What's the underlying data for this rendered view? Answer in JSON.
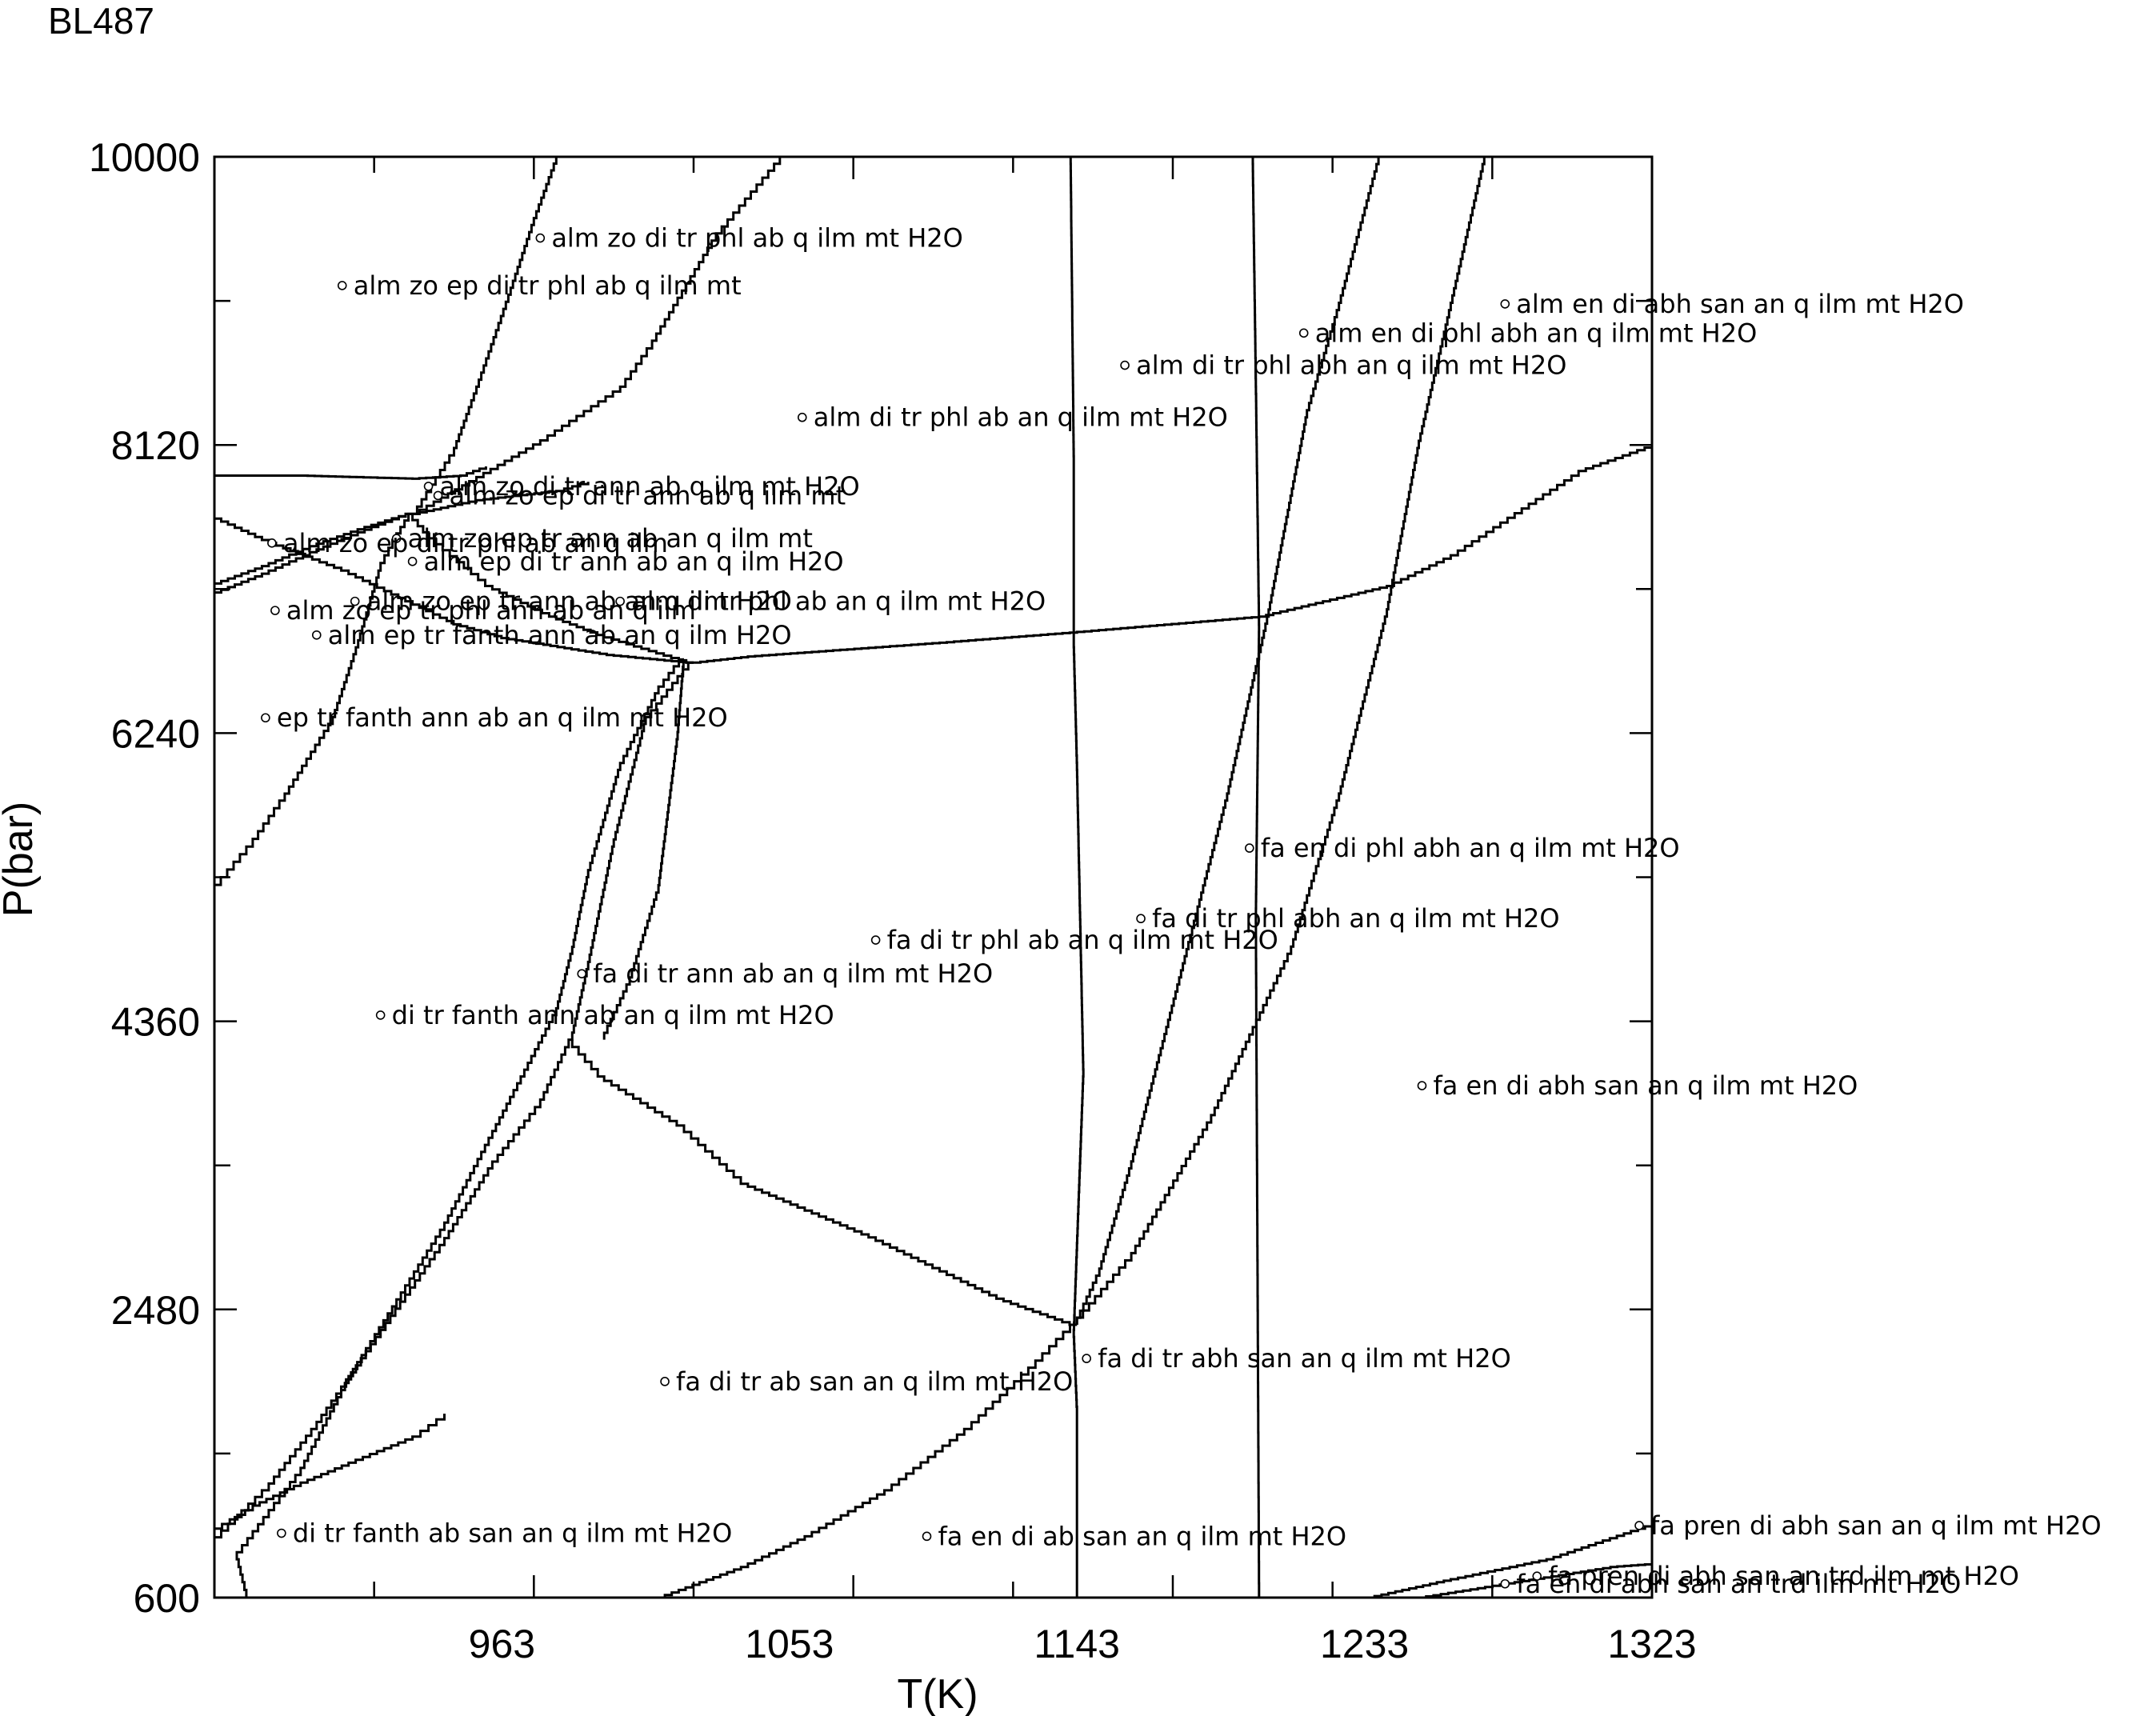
{
  "sample_label": "BL487",
  "chart_data": {
    "type": "line",
    "title": "BL487",
    "xlabel": "T(K)",
    "ylabel": "P(bar)",
    "xlim": [
      873,
      1323
    ],
    "ylim": [
      600,
      10000
    ],
    "xticks": [
      963,
      1053,
      1143,
      1233,
      1323
    ],
    "yticks": [
      600,
      2480,
      4360,
      6240,
      8120,
      10000
    ],
    "grid": false,
    "legend": "none",
    "line_color": "#000000",
    "boundaries": [
      {
        "points": [
          [
            1141,
            10000
          ],
          [
            1142,
            8000
          ],
          [
            1142,
            6800
          ],
          [
            1143,
            6000
          ],
          [
            1145,
            4000
          ],
          [
            1142,
            2300
          ],
          [
            1143,
            1800
          ],
          [
            1143,
            600
          ]
        ]
      },
      {
        "points": [
          [
            1198,
            10000
          ],
          [
            1199,
            8500
          ],
          [
            1200,
            6900
          ],
          [
            1199,
            5000
          ],
          [
            1200,
            600
          ]
        ]
      },
      {
        "points": [
          [
            1271,
            10000
          ],
          [
            1260,
            9000
          ],
          [
            1250,
            8100
          ],
          [
            1240,
            7000
          ],
          [
            1225,
            5800
          ],
          [
            1210,
            4800
          ],
          [
            1185,
            3700
          ],
          [
            1160,
            2800
          ],
          [
            1143,
            2380
          ]
        ]
      },
      {
        "points": [
          [
            1238,
            10000
          ],
          [
            1225,
            9000
          ],
          [
            1215,
            8300
          ],
          [
            1203,
            7000
          ],
          [
            1190,
            5800
          ],
          [
            1175,
            4600
          ],
          [
            1160,
            3400
          ],
          [
            1150,
            2700
          ],
          [
            1143,
            2380
          ]
        ]
      },
      {
        "points": [
          [
            1143,
            2380
          ],
          [
            1130,
            2100
          ],
          [
            1110,
            1700
          ],
          [
            1085,
            1300
          ],
          [
            1060,
            1000
          ],
          [
            1040,
            800
          ],
          [
            1014,
            600
          ]
        ]
      },
      {
        "points": [
          [
            1143,
            2380
          ],
          [
            1120,
            2550
          ],
          [
            1080,
            2950
          ],
          [
            1040,
            3300
          ],
          [
            1020,
            3680
          ],
          [
            995,
            4000
          ],
          [
            985,
            4240
          ]
        ]
      },
      {
        "points": [
          [
            1023,
            6700
          ],
          [
            1040,
            6740
          ],
          [
            1100,
            6830
          ],
          [
            1143,
            6900
          ],
          [
            1200,
            7000
          ],
          [
            1240,
            7200
          ],
          [
            1260,
            7400
          ],
          [
            1300,
            7950
          ],
          [
            1323,
            8120
          ]
        ]
      },
      {
        "points": [
          [
            1020,
            6720
          ],
          [
            1018,
            6200
          ],
          [
            1012,
            5200
          ],
          [
            1003,
            4600
          ],
          [
            995,
            4240
          ]
        ]
      },
      {
        "points": [
          [
            1023,
            6700
          ],
          [
            1008,
            6300
          ],
          [
            998,
            5500
          ],
          [
            990,
            4700
          ],
          [
            985,
            4240
          ],
          [
            975,
            3800
          ],
          [
            960,
            3400
          ],
          [
            945,
            2900
          ],
          [
            925,
            2300
          ],
          [
            905,
            1700
          ],
          [
            890,
            1300
          ],
          [
            873,
            950
          ]
        ]
      },
      {
        "points": [
          [
            1020,
            6720
          ],
          [
            1012,
            6500
          ],
          [
            1000,
            6000
          ],
          [
            990,
            5300
          ],
          [
            985,
            4800
          ],
          [
            980,
            4400
          ],
          [
            970,
            4000
          ],
          [
            960,
            3600
          ],
          [
            945,
            3000
          ],
          [
            930,
            2500
          ],
          [
            915,
            2000
          ],
          [
            900,
            1400
          ],
          [
            880,
            850
          ],
          [
            883,
            600
          ]
        ]
      },
      {
        "points": [
          [
            1023,
            6700
          ],
          [
            995,
            6880
          ],
          [
            980,
            7000
          ],
          [
            960,
            7200
          ],
          [
            940,
            7550
          ],
          [
            935,
            7670
          ]
        ]
      },
      {
        "points": [
          [
            1023,
            6700
          ],
          [
            998,
            6750
          ],
          [
            965,
            6860
          ],
          [
            950,
            6950
          ],
          [
            935,
            7100
          ],
          [
            915,
            7300
          ],
          [
            890,
            7500
          ],
          [
            873,
            7660
          ]
        ]
      },
      {
        "points": [
          [
            935,
            7670
          ],
          [
            930,
            7500
          ],
          [
            925,
            7300
          ],
          [
            918,
            6800
          ],
          [
            910,
            6300
          ],
          [
            895,
            5800
          ],
          [
            885,
            5500
          ],
          [
            873,
            5200
          ]
        ]
      },
      {
        "points": [
          [
            935,
            7670
          ],
          [
            920,
            7570
          ],
          [
            905,
            7460
          ],
          [
            890,
            7330
          ],
          [
            873,
            7200
          ]
        ]
      },
      {
        "points": [
          [
            935,
            7670
          ],
          [
            920,
            7550
          ],
          [
            905,
            7420
          ],
          [
            890,
            7280
          ],
          [
            873,
            7140
          ]
        ]
      },
      {
        "points": [
          [
            935,
            7670
          ],
          [
            955,
            7910
          ],
          [
            975,
            8150
          ],
          [
            1000,
            8500
          ],
          [
            1010,
            8800
          ],
          [
            1030,
            9500
          ],
          [
            1050,
            10000
          ]
        ]
      },
      {
        "points": [
          [
            935,
            7670
          ],
          [
            948,
            8100
          ],
          [
            955,
            8500
          ],
          [
            965,
            9100
          ],
          [
            973,
            9600
          ],
          [
            980,
            10000
          ]
        ]
      },
      {
        "points": [
          [
            935,
            7670
          ],
          [
            955,
            7760
          ],
          [
            980,
            7820
          ],
          [
            990,
            7880
          ]
        ]
      },
      {
        "points": [
          [
            873,
            7920
          ],
          [
            900,
            7920
          ],
          [
            935,
            7900
          ],
          [
            950,
            7920
          ],
          [
            958,
            7980
          ]
        ]
      },
      {
        "points": [
          [
            873,
            1050
          ],
          [
            885,
            1200
          ],
          [
            900,
            1350
          ],
          [
            915,
            1480
          ],
          [
            935,
            1650
          ],
          [
            945,
            1800
          ]
        ]
      },
      {
        "points": [
          [
            1234,
            600
          ],
          [
            1260,
            720
          ],
          [
            1290,
            850
          ],
          [
            1323,
            1080
          ]
        ]
      },
      {
        "points": [
          [
            1250,
            600
          ],
          [
            1280,
            700
          ],
          [
            1310,
            800
          ],
          [
            1323,
            820
          ]
        ]
      }
    ],
    "fields": [
      {
        "label": "alm zo di tr phl ab q ilm mt H2O",
        "t": 975,
        "p": 9470
      },
      {
        "label": "alm zo ep di tr phl ab q ilm mt",
        "t": 913,
        "p": 9160
      },
      {
        "label": "alm en di abh san an q ilm mt H2O",
        "t": 1277,
        "p": 9040
      },
      {
        "label": "alm en di phl abh an q ilm mt H2O",
        "t": 1214,
        "p": 8850
      },
      {
        "label": "alm di tr phl abh an q ilm mt H2O",
        "t": 1158,
        "p": 8640
      },
      {
        "label": "alm di tr phl ab an q ilm mt H2O",
        "t": 1057,
        "p": 8300
      },
      {
        "label": "alm zo di tr ann ab q ilm mt H2O",
        "t": 940,
        "p": 7850
      },
      {
        "label": "alm zo ep di tr ann ab q ilm mt",
        "t": 943,
        "p": 7790
      },
      {
        "label": "alm zo ep tr ann ab an q ilm mt",
        "t": 930,
        "p": 7510
      },
      {
        "label": "alm zo ep di tr phl ab an q ilm",
        "t": 891,
        "p": 7480
      },
      {
        "label": "alm ep di tr ann ab an q ilm H2O",
        "t": 935,
        "p": 7360
      },
      {
        "label": "alm zo ep tr ann ab an q ilm H2O",
        "t": 917,
        "p": 7100
      },
      {
        "label": "alm di tr phl ab an q ilm mt H2O",
        "t": 1000,
        "p": 7100
      },
      {
        "label": "alm zo ep tr phl ann ab an q ilm",
        "t": 892,
        "p": 7040
      },
      {
        "label": "alm ep tr fanth ann ab an q ilm H2O",
        "t": 905,
        "p": 6880
      },
      {
        "label": "ep tr fanth ann ab an q ilm mt H2O",
        "t": 889,
        "p": 6340
      },
      {
        "label": "fa en di phl abh an q ilm mt H2O",
        "t": 1197,
        "p": 5490
      },
      {
        "label": "fa di tr phl abh an q ilm mt H2O",
        "t": 1163,
        "p": 5030
      },
      {
        "label": "fa di tr phl ab an q ilm mt H2O",
        "t": 1080,
        "p": 4890
      },
      {
        "label": "fa di tr ann ab an q ilm mt H2O",
        "t": 988,
        "p": 4670
      },
      {
        "label": "di tr fanth ann ab an q ilm mt H2O",
        "t": 925,
        "p": 4400
      },
      {
        "label": "fa en di abh san an q ilm mt H2O",
        "t": 1251,
        "p": 3940
      },
      {
        "label": "fa di tr abh san an q ilm mt H2O",
        "t": 1146,
        "p": 2160
      },
      {
        "label": "fa di tr ab san an q ilm mt H2O",
        "t": 1014,
        "p": 2010
      },
      {
        "label": "di tr fanth ab san an q ilm mt H2O",
        "t": 894,
        "p": 1020
      },
      {
        "label": "fa en di ab san an q ilm mt H2O",
        "t": 1096,
        "p": 1000
      },
      {
        "label": "fa pren di abh san an q ilm mt H2O",
        "t": 1319,
        "p": 1070
      },
      {
        "label": "fa pren di abh san an trd ilm mt H2O",
        "t": 1287,
        "p": 740
      },
      {
        "label": "fa en di abh san an trd ilm mt H2O",
        "t": 1277,
        "p": 690
      }
    ]
  }
}
